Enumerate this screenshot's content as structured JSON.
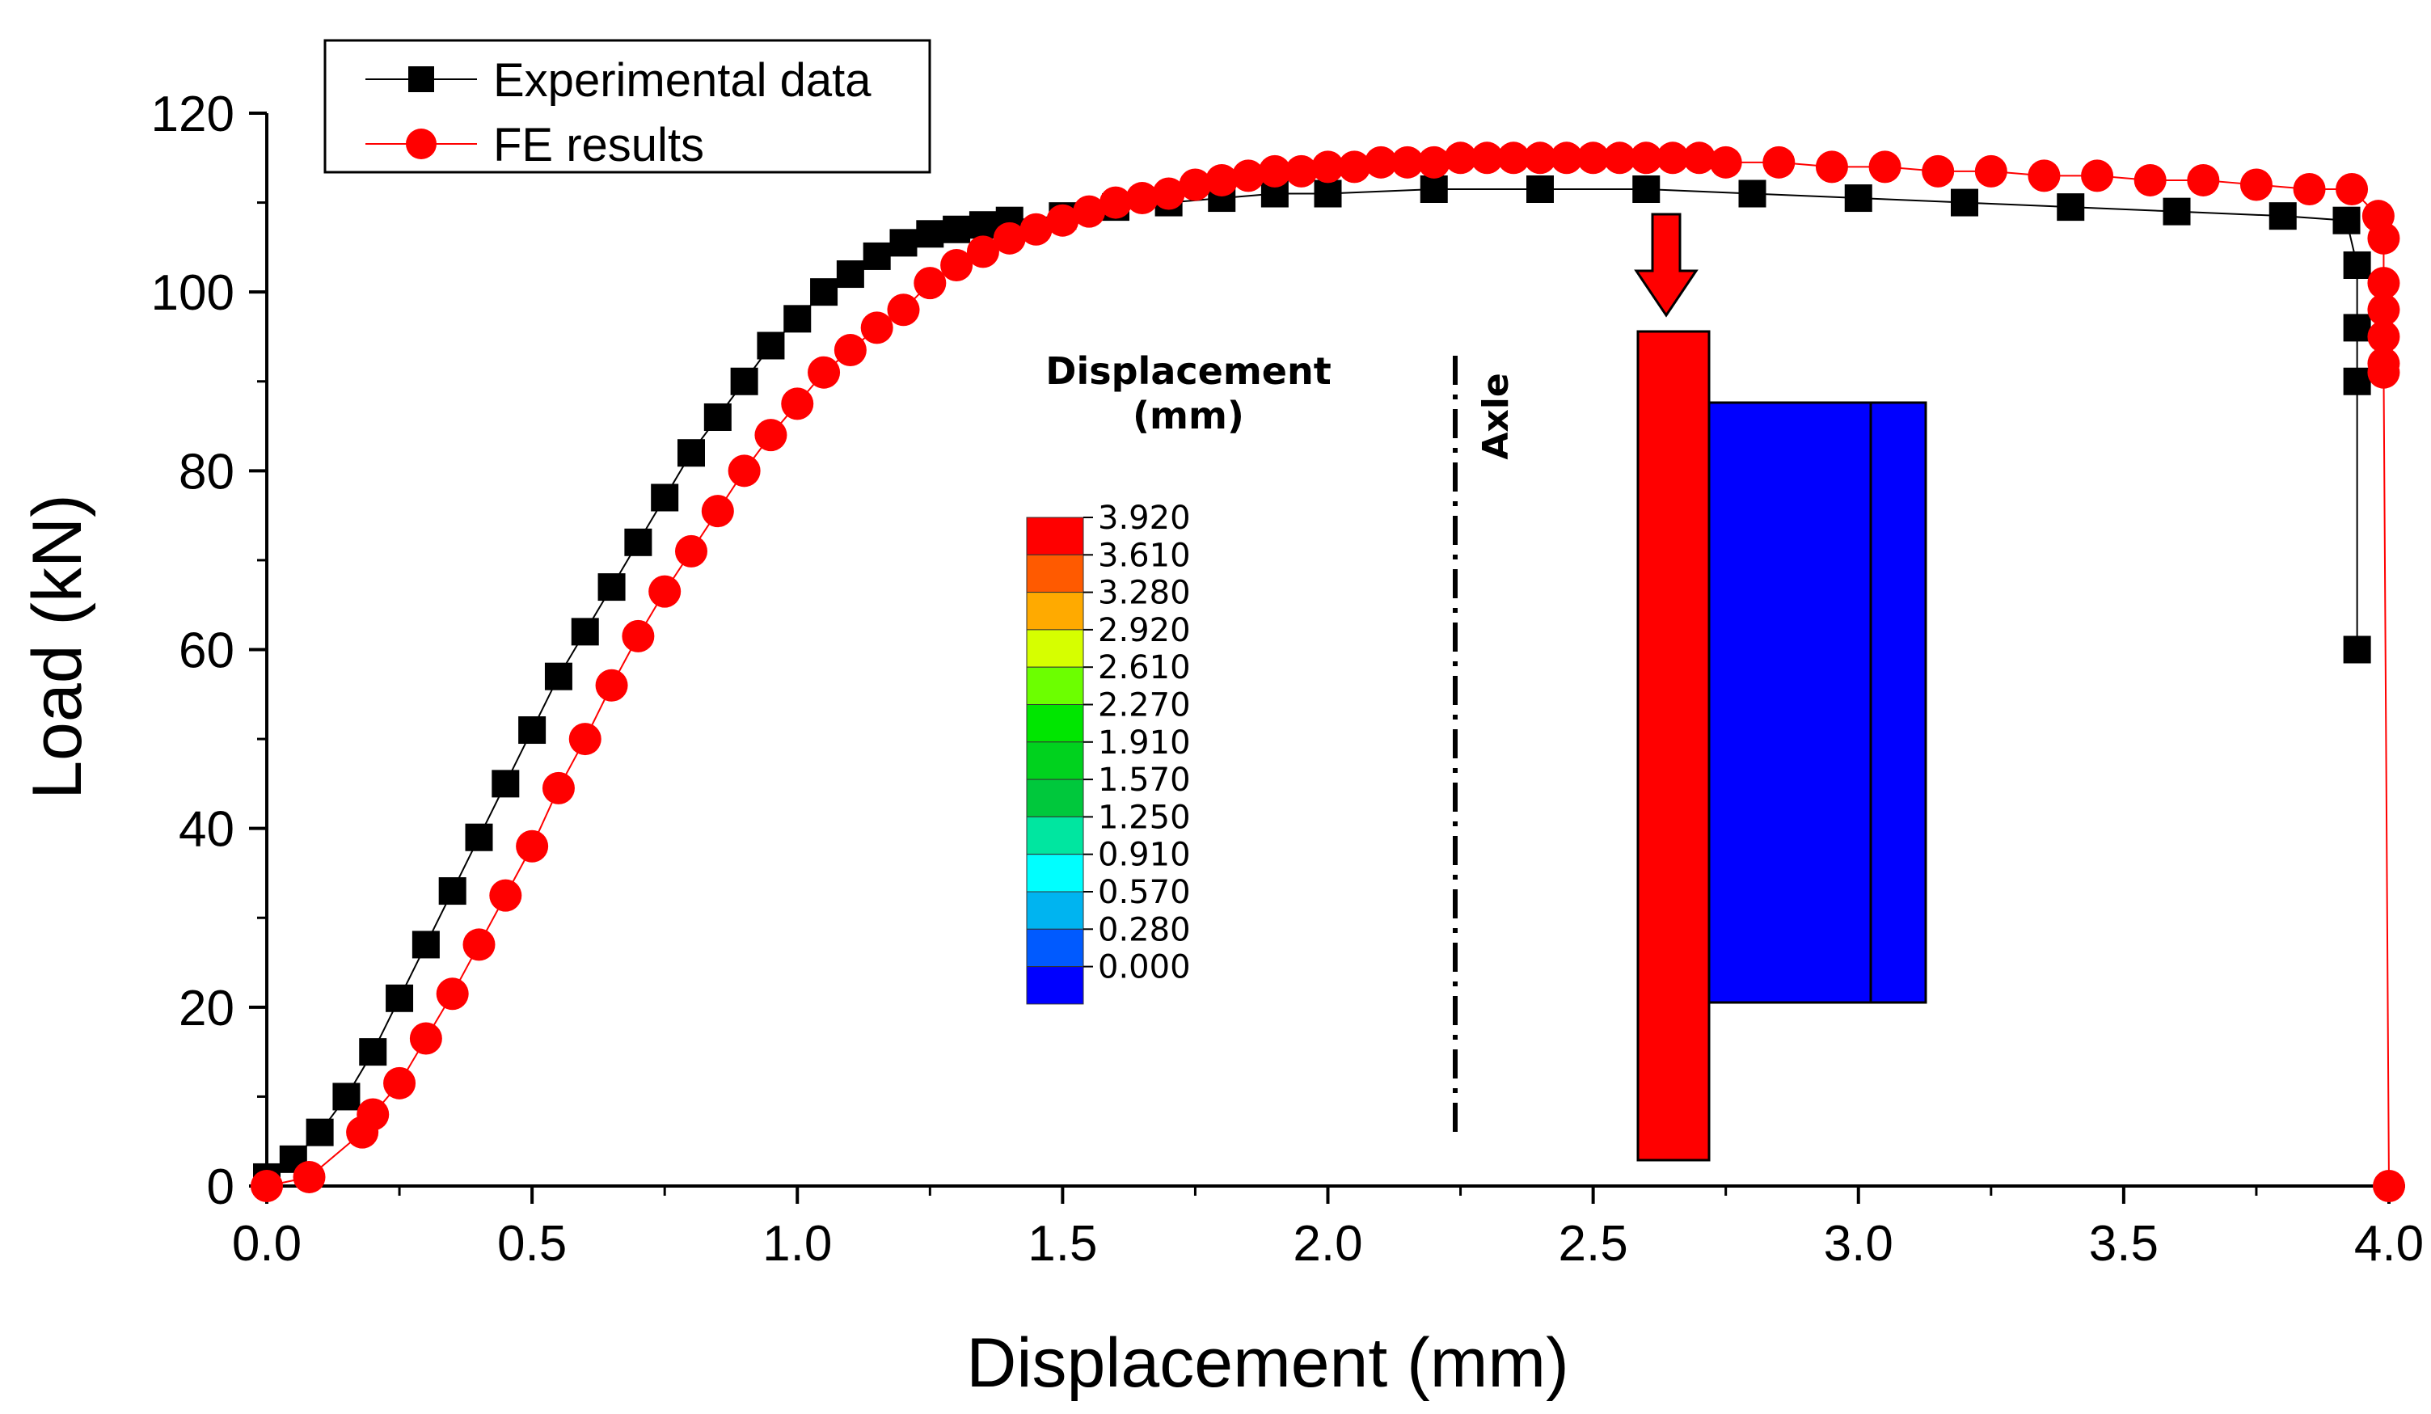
{
  "chart_data": {
    "type": "line",
    "xlabel": "Displacement (mm)",
    "ylabel": "Load (kN)",
    "xlim": [
      0.0,
      4.0
    ],
    "ylim": [
      0,
      120
    ],
    "x_ticks": [
      "0.0",
      "0.5",
      "1.0",
      "1.5",
      "2.0",
      "2.5",
      "3.0",
      "3.5",
      "4.0"
    ],
    "y_ticks": [
      "0",
      "20",
      "40",
      "60",
      "80",
      "100",
      "120"
    ],
    "grid": false,
    "legend_position": "top-left",
    "series": [
      {
        "name": "Experimental data",
        "color": "#000000",
        "marker": "square",
        "x": [
          0.0,
          0.05,
          0.1,
          0.15,
          0.2,
          0.25,
          0.3,
          0.35,
          0.4,
          0.45,
          0.5,
          0.55,
          0.6,
          0.65,
          0.7,
          0.75,
          0.8,
          0.85,
          0.9,
          0.95,
          1.0,
          1.05,
          1.1,
          1.15,
          1.2,
          1.25,
          1.3,
          1.35,
          1.4,
          1.5,
          1.6,
          1.7,
          1.8,
          1.9,
          2.0,
          2.2,
          2.4,
          2.6,
          2.8,
          3.0,
          3.2,
          3.4,
          3.6,
          3.8,
          3.92,
          3.94,
          3.94,
          3.94,
          3.94
        ],
        "y": [
          1,
          3,
          6,
          10,
          15,
          21,
          27,
          33,
          39,
          45,
          51,
          57,
          62,
          67,
          72,
          77,
          82,
          86,
          90,
          94,
          97,
          100,
          102,
          104,
          105.5,
          106.5,
          107,
          107.5,
          108,
          108.5,
          109.5,
          110,
          110.5,
          111,
          111,
          111.5,
          111.5,
          111.5,
          111,
          110.5,
          110,
          109.5,
          109,
          108.5,
          108,
          103,
          96,
          90,
          60
        ]
      },
      {
        "name": "FE results",
        "color": "#ff0000",
        "marker": "circle",
        "x": [
          0.0,
          0.08,
          0.18,
          0.2,
          0.25,
          0.3,
          0.35,
          0.4,
          0.45,
          0.5,
          0.55,
          0.6,
          0.65,
          0.7,
          0.75,
          0.8,
          0.85,
          0.9,
          0.95,
          1.0,
          1.05,
          1.1,
          1.15,
          1.2,
          1.25,
          1.3,
          1.35,
          1.4,
          1.45,
          1.5,
          1.55,
          1.6,
          1.65,
          1.7,
          1.75,
          1.8,
          1.85,
          1.9,
          1.95,
          2.0,
          2.05,
          2.1,
          2.15,
          2.2,
          2.25,
          2.3,
          2.35,
          2.4,
          2.45,
          2.5,
          2.55,
          2.6,
          2.65,
          2.7,
          2.75,
          2.85,
          2.95,
          3.05,
          3.15,
          3.25,
          3.35,
          3.45,
          3.55,
          3.65,
          3.75,
          3.85,
          3.93,
          3.98,
          3.99,
          3.99,
          3.99,
          3.99,
          3.99,
          3.99,
          4.0
        ],
        "y": [
          0,
          1,
          6,
          8,
          11.5,
          16.5,
          21.5,
          27,
          32.5,
          38,
          44.5,
          50,
          56,
          61.5,
          66.5,
          71,
          75.5,
          80,
          84,
          87.5,
          91,
          93.5,
          96,
          98,
          101,
          103,
          104.5,
          106,
          107,
          108,
          109,
          110,
          110.5,
          111,
          112,
          112.5,
          113,
          113.5,
          113.5,
          114,
          114,
          114.5,
          114.5,
          114.5,
          115,
          115,
          115,
          115,
          115,
          115,
          115,
          115,
          115,
          115,
          114.5,
          114.5,
          114,
          114,
          113.5,
          113.5,
          113,
          113,
          112.5,
          112.5,
          112,
          111.5,
          111.5,
          108.5,
          106,
          101,
          98,
          95,
          92,
          91,
          0
        ]
      }
    ],
    "inset": {
      "colorbar_title_line1": "Displacement",
      "colorbar_title_line2": "(mm)",
      "colorbar_labels": [
        "3.920",
        "3.610",
        "3.280",
        "2.920",
        "2.610",
        "2.270",
        "1.910",
        "1.570",
        "1.250",
        "0.910",
        "0.570",
        "0.280",
        "0.000"
      ],
      "colorbar_colors": [
        "#ff0000",
        "#ff5a00",
        "#ffaa00",
        "#d6ff00",
        "#6cff00",
        "#00e600",
        "#00d21e",
        "#00c83c",
        "#00e6a0",
        "#00ffff",
        "#00b4f0",
        "#005aff",
        "#0000ff"
      ],
      "axle_label": "Axle",
      "punch_color": "#ff0000",
      "specimen_color": "#0000ff",
      "arrow_color": "#ff0000"
    }
  }
}
